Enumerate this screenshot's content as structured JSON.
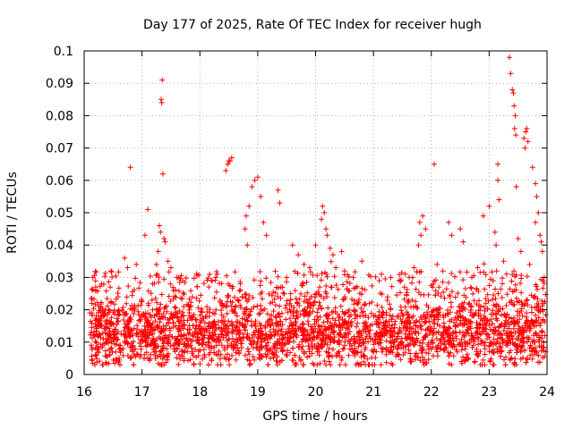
{
  "chart_data": {
    "type": "scatter",
    "title": "Day 177 of 2025, Rate Of TEC Index for receiver hugh",
    "xlabel": "GPS time / hours",
    "ylabel": "ROTI / TECUs",
    "xlim": [
      16,
      24
    ],
    "ylim": [
      0,
      0.1
    ],
    "xticks": [
      16,
      17,
      18,
      19,
      20,
      21,
      22,
      23,
      24
    ],
    "xtick_labels": [
      "16",
      "17",
      "18",
      "19",
      "20",
      "21",
      "22",
      "23",
      "24"
    ],
    "yticks": [
      0,
      0.01,
      0.02,
      0.03,
      0.04,
      0.05,
      0.06,
      0.07,
      0.08,
      0.09,
      0.1
    ],
    "ytick_labels": [
      "0",
      "0.01",
      "0.02",
      "0.03",
      "0.04",
      "0.05",
      "0.06",
      "0.07",
      "0.08",
      "0.09",
      "0.1"
    ],
    "grid": true,
    "marker": "+",
    "color": "#ff0000",
    "series": [
      {
        "name": "ROTI",
        "points": [
          [
            16.8,
            0.064
          ],
          [
            17.35,
            0.091
          ],
          [
            17.33,
            0.085
          ],
          [
            17.34,
            0.084
          ],
          [
            17.36,
            0.062
          ],
          [
            17.1,
            0.051
          ],
          [
            17.05,
            0.043
          ],
          [
            17.3,
            0.046
          ],
          [
            17.32,
            0.044
          ],
          [
            17.38,
            0.042
          ],
          [
            17.4,
            0.041
          ],
          [
            17.28,
            0.038
          ],
          [
            17.45,
            0.035
          ],
          [
            17.5,
            0.033
          ],
          [
            17.25,
            0.034
          ],
          [
            18.45,
            0.063
          ],
          [
            18.48,
            0.065
          ],
          [
            18.5,
            0.066
          ],
          [
            18.52,
            0.066
          ],
          [
            18.55,
            0.067
          ],
          [
            18.9,
            0.058
          ],
          [
            18.95,
            0.06
          ],
          [
            19.0,
            0.061
          ],
          [
            19.05,
            0.055
          ],
          [
            18.85,
            0.052
          ],
          [
            18.8,
            0.049
          ],
          [
            19.1,
            0.047
          ],
          [
            19.15,
            0.043
          ],
          [
            18.78,
            0.045
          ],
          [
            18.82,
            0.04
          ],
          [
            19.35,
            0.057
          ],
          [
            19.38,
            0.053
          ],
          [
            19.6,
            0.04
          ],
          [
            19.7,
            0.037
          ],
          [
            20.0,
            0.04
          ],
          [
            20.1,
            0.048
          ],
          [
            20.12,
            0.052
          ],
          [
            20.15,
            0.05
          ],
          [
            20.18,
            0.045
          ],
          [
            20.2,
            0.043
          ],
          [
            20.25,
            0.039
          ],
          [
            20.3,
            0.037
          ],
          [
            20.45,
            0.038
          ],
          [
            20.8,
            0.035
          ],
          [
            21.8,
            0.047
          ],
          [
            21.85,
            0.049
          ],
          [
            21.82,
            0.043
          ],
          [
            21.9,
            0.045
          ],
          [
            21.78,
            0.04
          ],
          [
            22.05,
            0.065
          ],
          [
            22.3,
            0.047
          ],
          [
            22.35,
            0.043
          ],
          [
            22.5,
            0.045
          ],
          [
            22.55,
            0.041
          ],
          [
            22.9,
            0.049
          ],
          [
            23.0,
            0.052
          ],
          [
            23.1,
            0.044
          ],
          [
            23.12,
            0.04
          ],
          [
            23.15,
            0.065
          ],
          [
            23.15,
            0.06
          ],
          [
            23.17,
            0.054
          ],
          [
            23.35,
            0.098
          ],
          [
            23.37,
            0.093
          ],
          [
            23.4,
            0.088
          ],
          [
            23.42,
            0.087
          ],
          [
            23.43,
            0.083
          ],
          [
            23.45,
            0.08
          ],
          [
            23.44,
            0.076
          ],
          [
            23.46,
            0.074
          ],
          [
            23.47,
            0.058
          ],
          [
            23.6,
            0.073
          ],
          [
            23.63,
            0.075
          ],
          [
            23.65,
            0.076
          ],
          [
            23.67,
            0.072
          ],
          [
            23.62,
            0.07
          ],
          [
            23.75,
            0.064
          ],
          [
            23.8,
            0.059
          ],
          [
            23.82,
            0.055
          ],
          [
            23.85,
            0.05
          ],
          [
            23.8,
            0.047
          ],
          [
            23.88,
            0.043
          ],
          [
            23.9,
            0.041
          ],
          [
            23.92,
            0.038
          ],
          [
            23.5,
            0.042
          ],
          [
            23.55,
            0.038
          ],
          [
            16.15,
            0.03
          ],
          [
            16.2,
            0.027
          ],
          [
            16.3,
            0.028
          ],
          [
            16.45,
            0.027
          ],
          [
            16.7,
            0.036
          ],
          [
            16.75,
            0.033
          ],
          [
            16.9,
            0.034
          ],
          [
            17.6,
            0.03
          ],
          [
            17.7,
            0.029
          ],
          [
            18.2,
            0.029
          ],
          [
            18.3,
            0.031
          ],
          [
            18.7,
            0.028
          ],
          [
            19.4,
            0.027
          ],
          [
            19.5,
            0.03
          ],
          [
            19.8,
            0.034
          ],
          [
            19.9,
            0.033
          ],
          [
            20.35,
            0.033
          ],
          [
            20.5,
            0.032
          ],
          [
            20.65,
            0.03
          ],
          [
            21.1,
            0.029
          ],
          [
            21.3,
            0.03
          ],
          [
            21.55,
            0.031
          ],
          [
            21.7,
            0.033
          ],
          [
            22.1,
            0.034
          ],
          [
            22.2,
            0.032
          ],
          [
            22.7,
            0.03
          ],
          [
            22.8,
            0.033
          ],
          [
            23.25,
            0.035
          ],
          [
            23.3,
            0.031
          ],
          [
            23.7,
            0.034
          ],
          [
            23.95,
            0.03
          ]
        ],
        "background_band": {
          "description": "dense band of measurements between 16.1 and 24 hours",
          "x_range": [
            16.1,
            23.98
          ],
          "y_core_range": [
            0.004,
            0.022
          ],
          "y_mean": 0.012
        }
      }
    ]
  }
}
